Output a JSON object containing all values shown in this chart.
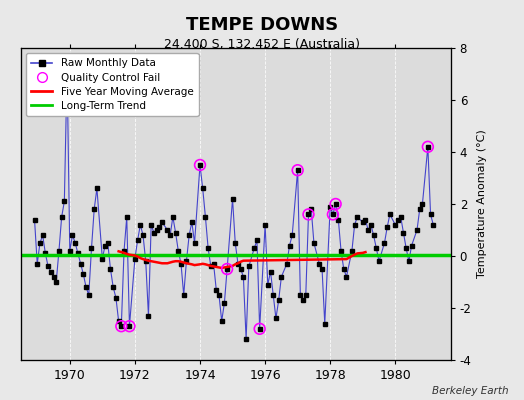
{
  "title": "TEMPE DOWNS",
  "subtitle": "24.400 S, 132.452 E (Australia)",
  "ylabel": "Temperature Anomaly (°C)",
  "credit": "Berkeley Earth",
  "ylim": [
    -4,
    8
  ],
  "xlim": [
    1968.5,
    1981.7
  ],
  "yticks": [
    -4,
    -2,
    0,
    2,
    4,
    6,
    8
  ],
  "xticks": [
    1970,
    1972,
    1974,
    1976,
    1978,
    1980
  ],
  "bg_color": "#e8e8e8",
  "plot_bg_color": "#dcdcdc",
  "raw_line_color": "#4444cc",
  "raw_marker_color": "#000000",
  "qc_fail_color": "#ff00ff",
  "moving_avg_color": "#ff0000",
  "trend_color": "#00cc00",
  "monthly_data": [
    [
      1968.917,
      1.4
    ],
    [
      1969.0,
      -0.3
    ],
    [
      1969.083,
      0.5
    ],
    [
      1969.167,
      0.8
    ],
    [
      1969.25,
      0.1
    ],
    [
      1969.333,
      -0.4
    ],
    [
      1969.417,
      -0.6
    ],
    [
      1969.5,
      -0.8
    ],
    [
      1969.583,
      -1.0
    ],
    [
      1969.667,
      0.2
    ],
    [
      1969.75,
      1.5
    ],
    [
      1969.833,
      2.1
    ],
    [
      1969.917,
      7.2
    ],
    [
      1970.0,
      0.2
    ],
    [
      1970.083,
      0.8
    ],
    [
      1970.167,
      0.5
    ],
    [
      1970.25,
      0.1
    ],
    [
      1970.333,
      -0.3
    ],
    [
      1970.417,
      -0.7
    ],
    [
      1970.5,
      -1.2
    ],
    [
      1970.583,
      -1.5
    ],
    [
      1970.667,
      0.3
    ],
    [
      1970.75,
      1.8
    ],
    [
      1970.833,
      2.6
    ],
    [
      1971.0,
      -0.1
    ],
    [
      1971.083,
      0.4
    ],
    [
      1971.167,
      0.5
    ],
    [
      1971.25,
      -0.5
    ],
    [
      1971.333,
      -1.2
    ],
    [
      1971.417,
      -1.6
    ],
    [
      1971.5,
      -2.5
    ],
    [
      1971.583,
      -2.7
    ],
    [
      1971.667,
      0.2
    ],
    [
      1971.75,
      1.5
    ],
    [
      1971.833,
      -2.7
    ],
    [
      1972.0,
      -0.1
    ],
    [
      1972.083,
      0.6
    ],
    [
      1972.167,
      1.2
    ],
    [
      1972.25,
      0.8
    ],
    [
      1972.333,
      -0.2
    ],
    [
      1972.417,
      -2.3
    ],
    [
      1972.5,
      1.2
    ],
    [
      1972.583,
      0.9
    ],
    [
      1972.667,
      1.0
    ],
    [
      1972.75,
      1.1
    ],
    [
      1972.833,
      1.3
    ],
    [
      1973.0,
      1.0
    ],
    [
      1973.083,
      0.8
    ],
    [
      1973.167,
      1.5
    ],
    [
      1973.25,
      0.9
    ],
    [
      1973.333,
      0.2
    ],
    [
      1973.417,
      -0.3
    ],
    [
      1973.5,
      -1.5
    ],
    [
      1973.583,
      -0.2
    ],
    [
      1973.667,
      0.8
    ],
    [
      1973.75,
      1.3
    ],
    [
      1973.833,
      0.5
    ],
    [
      1974.0,
      3.5
    ],
    [
      1974.083,
      2.6
    ],
    [
      1974.167,
      1.5
    ],
    [
      1974.25,
      0.3
    ],
    [
      1974.333,
      -0.4
    ],
    [
      1974.417,
      -0.3
    ],
    [
      1974.5,
      -1.3
    ],
    [
      1974.583,
      -1.5
    ],
    [
      1974.667,
      -2.5
    ],
    [
      1974.75,
      -1.8
    ],
    [
      1974.833,
      -0.5
    ],
    [
      1975.0,
      2.2
    ],
    [
      1975.083,
      0.5
    ],
    [
      1975.167,
      -0.3
    ],
    [
      1975.25,
      -0.5
    ],
    [
      1975.333,
      -0.8
    ],
    [
      1975.417,
      -3.2
    ],
    [
      1975.5,
      -0.4
    ],
    [
      1975.667,
      0.3
    ],
    [
      1975.75,
      0.6
    ],
    [
      1975.833,
      -2.8
    ],
    [
      1976.0,
      1.2
    ],
    [
      1976.083,
      -1.1
    ],
    [
      1976.167,
      -0.6
    ],
    [
      1976.25,
      -1.5
    ],
    [
      1976.333,
      -2.4
    ],
    [
      1976.417,
      -1.7
    ],
    [
      1976.5,
      -0.8
    ],
    [
      1976.667,
      -0.3
    ],
    [
      1976.75,
      0.4
    ],
    [
      1976.833,
      0.8
    ],
    [
      1977.0,
      3.3
    ],
    [
      1977.083,
      -1.5
    ],
    [
      1977.167,
      -1.7
    ],
    [
      1977.25,
      -1.5
    ],
    [
      1977.333,
      1.6
    ],
    [
      1977.417,
      1.8
    ],
    [
      1977.5,
      0.5
    ],
    [
      1977.667,
      -0.3
    ],
    [
      1977.75,
      -0.5
    ],
    [
      1977.833,
      -2.6
    ],
    [
      1978.0,
      1.9
    ],
    [
      1978.083,
      1.6
    ],
    [
      1978.167,
      2.0
    ],
    [
      1978.25,
      1.4
    ],
    [
      1978.333,
      0.2
    ],
    [
      1978.417,
      -0.5
    ],
    [
      1978.5,
      -0.8
    ],
    [
      1978.667,
      0.2
    ],
    [
      1978.75,
      1.2
    ],
    [
      1978.833,
      1.5
    ],
    [
      1979.0,
      1.3
    ],
    [
      1979.083,
      1.4
    ],
    [
      1979.167,
      1.0
    ],
    [
      1979.25,
      1.2
    ],
    [
      1979.333,
      0.8
    ],
    [
      1979.417,
      0.3
    ],
    [
      1979.5,
      -0.2
    ],
    [
      1979.667,
      0.5
    ],
    [
      1979.75,
      1.1
    ],
    [
      1979.833,
      1.6
    ],
    [
      1980.0,
      1.2
    ],
    [
      1980.083,
      1.4
    ],
    [
      1980.167,
      1.5
    ],
    [
      1980.25,
      0.9
    ],
    [
      1980.333,
      0.3
    ],
    [
      1980.417,
      -0.2
    ],
    [
      1980.5,
      0.4
    ],
    [
      1980.667,
      1.0
    ],
    [
      1980.75,
      1.8
    ],
    [
      1980.833,
      2.0
    ],
    [
      1981.0,
      4.2
    ],
    [
      1981.083,
      1.6
    ],
    [
      1981.167,
      1.2
    ]
  ],
  "qc_fail_points": [
    [
      1969.917,
      7.2
    ],
    [
      1971.583,
      -2.7
    ],
    [
      1971.833,
      -2.7
    ],
    [
      1974.0,
      3.5
    ],
    [
      1974.833,
      -0.5
    ],
    [
      1975.833,
      -2.8
    ],
    [
      1977.0,
      3.3
    ],
    [
      1977.333,
      1.6
    ],
    [
      1978.083,
      1.6
    ],
    [
      1978.167,
      2.0
    ],
    [
      1981.0,
      4.2
    ]
  ],
  "moving_avg": [
    [
      1971.5,
      0.18
    ],
    [
      1971.583,
      0.15
    ],
    [
      1971.667,
      0.12
    ],
    [
      1971.75,
      0.08
    ],
    [
      1971.833,
      0.05
    ],
    [
      1972.0,
      0.02
    ],
    [
      1972.083,
      -0.02
    ],
    [
      1972.167,
      -0.08
    ],
    [
      1972.25,
      -0.12
    ],
    [
      1972.333,
      -0.15
    ],
    [
      1972.417,
      -0.18
    ],
    [
      1972.5,
      -0.2
    ],
    [
      1972.583,
      -0.22
    ],
    [
      1972.667,
      -0.24
    ],
    [
      1972.75,
      -0.26
    ],
    [
      1972.833,
      -0.28
    ],
    [
      1973.0,
      -0.28
    ],
    [
      1973.083,
      -0.25
    ],
    [
      1973.167,
      -0.22
    ],
    [
      1973.25,
      -0.2
    ],
    [
      1973.333,
      -0.2
    ],
    [
      1973.417,
      -0.22
    ],
    [
      1973.5,
      -0.25
    ],
    [
      1973.583,
      -0.28
    ],
    [
      1973.667,
      -0.3
    ],
    [
      1973.75,
      -0.32
    ],
    [
      1973.833,
      -0.35
    ],
    [
      1974.0,
      -0.32
    ],
    [
      1974.083,
      -0.3
    ],
    [
      1974.167,
      -0.32
    ],
    [
      1974.25,
      -0.35
    ],
    [
      1974.333,
      -0.38
    ],
    [
      1974.417,
      -0.4
    ],
    [
      1974.5,
      -0.42
    ],
    [
      1974.583,
      -0.44
    ],
    [
      1974.667,
      -0.46
    ],
    [
      1974.75,
      -0.44
    ],
    [
      1974.833,
      -0.42
    ],
    [
      1975.0,
      -0.38
    ],
    [
      1975.083,
      -0.32
    ],
    [
      1975.167,
      -0.28
    ],
    [
      1975.25,
      -0.22
    ],
    [
      1975.333,
      -0.18
    ],
    [
      1978.5,
      -0.12
    ],
    [
      1978.583,
      -0.06
    ],
    [
      1978.667,
      0.0
    ],
    [
      1978.75,
      0.05
    ],
    [
      1978.833,
      0.1
    ],
    [
      1979.0,
      0.12
    ],
    [
      1979.083,
      0.15
    ]
  ],
  "trend_x": [
    1968.5,
    1981.7
  ],
  "trend_y": [
    0.05,
    0.05
  ]
}
